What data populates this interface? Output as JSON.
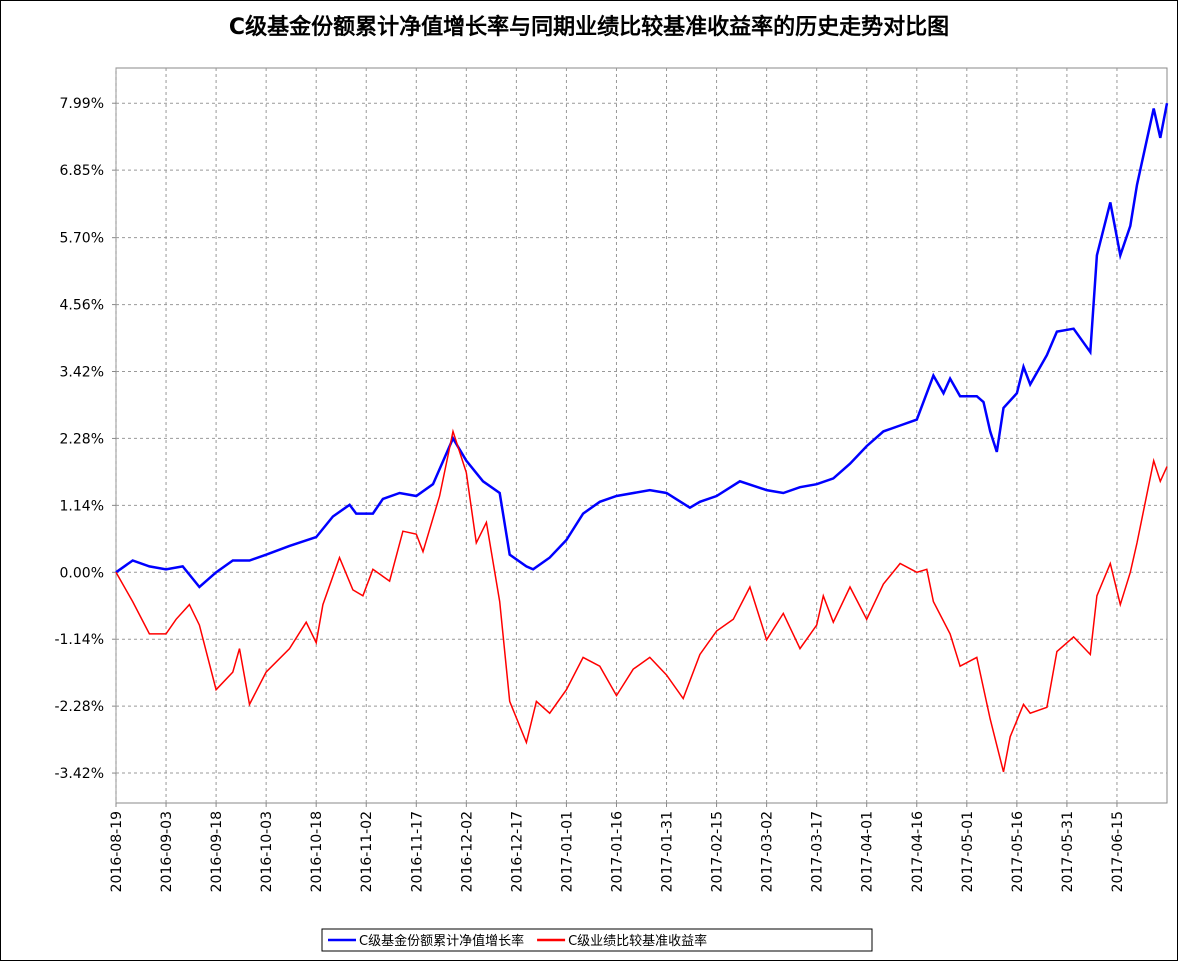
{
  "chart_data": {
    "type": "line",
    "title": "C级基金份额累计净值增长率与同期业绩比较基准收益率的历史走势对比图",
    "xlim": [
      "2016-08-19",
      "2017-06-30"
    ],
    "xticks": [
      "2016-08-19",
      "2016-09-03",
      "2016-09-18",
      "2016-10-03",
      "2016-10-18",
      "2016-11-02",
      "2016-11-17",
      "2016-12-02",
      "2016-12-17",
      "2017-01-01",
      "2017-01-16",
      "2017-01-31",
      "2017-02-15",
      "2017-03-02",
      "2017-03-17",
      "2017-04-01",
      "2017-04-16",
      "2017-05-01",
      "2017-05-16",
      "2017-05-31",
      "2017-06-15"
    ],
    "ylim": [
      -3.93,
      8.59
    ],
    "yticks": [
      {
        "value": 7.99,
        "label": "7.99%"
      },
      {
        "value": 6.85,
        "label": "6.85%"
      },
      {
        "value": 5.7,
        "label": "5.70%"
      },
      {
        "value": 4.56,
        "label": "4.56%"
      },
      {
        "value": 3.42,
        "label": "3.42%"
      },
      {
        "value": 2.28,
        "label": "2.28%"
      },
      {
        "value": 1.14,
        "label": "1.14%"
      },
      {
        "value": 0,
        "label": "0.00%"
      },
      {
        "value": -1.14,
        "label": "-1.14%"
      },
      {
        "value": -2.28,
        "label": "-2.28%"
      },
      {
        "value": -3.42,
        "label": "-3.42%"
      }
    ],
    "grid": true,
    "legend": "bottom",
    "series": [
      {
        "name": "C级基金份额累计净值增长率",
        "color": "#0000ff",
        "x": [
          "2016-08-19",
          "2016-08-24",
          "2016-08-29",
          "2016-09-03",
          "2016-09-08",
          "2016-09-13",
          "2016-09-18",
          "2016-09-23",
          "2016-09-28",
          "2016-10-03",
          "2016-10-10",
          "2016-10-18",
          "2016-10-23",
          "2016-10-28",
          "2016-10-30",
          "2016-11-04",
          "2016-11-07",
          "2016-11-12",
          "2016-11-17",
          "2016-11-22",
          "2016-11-28",
          "2016-12-02",
          "2016-12-07",
          "2016-12-12",
          "2016-12-15",
          "2016-12-20",
          "2016-12-22",
          "2016-12-27",
          "2017-01-01",
          "2017-01-06",
          "2017-01-11",
          "2017-01-16",
          "2017-01-26",
          "2017-01-31",
          "2017-02-07",
          "2017-02-10",
          "2017-02-15",
          "2017-02-22",
          "2017-03-02",
          "2017-03-07",
          "2017-03-12",
          "2017-03-17",
          "2017-03-22",
          "2017-03-27",
          "2017-04-01",
          "2017-04-06",
          "2017-04-11",
          "2017-04-16",
          "2017-04-21",
          "2017-04-24",
          "2017-04-26",
          "2017-04-29",
          "2017-05-04",
          "2017-05-06",
          "2017-05-08",
          "2017-05-10",
          "2017-05-12",
          "2017-05-16",
          "2017-05-18",
          "2017-05-20",
          "2017-05-25",
          "2017-05-28",
          "2017-06-02",
          "2017-06-07",
          "2017-06-09",
          "2017-06-13",
          "2017-06-16",
          "2017-06-19",
          "2017-06-21",
          "2017-06-26",
          "2017-06-28",
          "2017-06-30"
        ],
        "values": [
          0.0,
          0.2,
          0.1,
          0.05,
          0.1,
          -0.25,
          0.0,
          0.2,
          0.2,
          0.3,
          0.45,
          0.6,
          0.95,
          1.15,
          1.0,
          1.0,
          1.25,
          1.35,
          1.3,
          1.5,
          2.28,
          1.9,
          1.55,
          1.35,
          0.3,
          0.1,
          0.05,
          0.25,
          0.55,
          1.0,
          1.2,
          1.3,
          1.4,
          1.35,
          1.1,
          1.2,
          1.3,
          1.55,
          1.4,
          1.35,
          1.45,
          1.5,
          1.6,
          1.85,
          2.15,
          2.4,
          2.5,
          2.6,
          3.35,
          3.05,
          3.3,
          3.0,
          3.0,
          2.9,
          2.4,
          2.05,
          2.8,
          3.05,
          3.5,
          3.2,
          3.7,
          4.1,
          4.15,
          3.75,
          5.4,
          6.3,
          5.4,
          5.9,
          6.6,
          7.9,
          7.4,
          7.99
        ]
      },
      {
        "name": "C级业绩比较基准收益率",
        "color": "#ff0000",
        "x": [
          "2016-08-19",
          "2016-08-24",
          "2016-08-29",
          "2016-09-03",
          "2016-09-06",
          "2016-09-10",
          "2016-09-13",
          "2016-09-18",
          "2016-09-23",
          "2016-09-25",
          "2016-09-28",
          "2016-10-03",
          "2016-10-10",
          "2016-10-15",
          "2016-10-18",
          "2016-10-20",
          "2016-10-25",
          "2016-10-29",
          "2016-11-01",
          "2016-11-04",
          "2016-11-09",
          "2016-11-13",
          "2016-11-17",
          "2016-11-19",
          "2016-11-24",
          "2016-11-28",
          "2016-12-02",
          "2016-12-05",
          "2016-12-08",
          "2016-12-12",
          "2016-12-15",
          "2016-12-20",
          "2016-12-23",
          "2016-12-27",
          "2017-01-01",
          "2017-01-06",
          "2017-01-11",
          "2017-01-16",
          "2017-01-21",
          "2017-01-26",
          "2017-01-31",
          "2017-02-05",
          "2017-02-10",
          "2017-02-15",
          "2017-02-20",
          "2017-02-25",
          "2017-03-02",
          "2017-03-07",
          "2017-03-12",
          "2017-03-17",
          "2017-03-19",
          "2017-03-22",
          "2017-03-27",
          "2017-04-01",
          "2017-04-06",
          "2017-04-11",
          "2017-04-16",
          "2017-04-19",
          "2017-04-21",
          "2017-04-26",
          "2017-04-29",
          "2017-05-04",
          "2017-05-08",
          "2017-05-12",
          "2017-05-14",
          "2017-05-18",
          "2017-05-20",
          "2017-05-25",
          "2017-05-28",
          "2017-06-02",
          "2017-06-07",
          "2017-06-09",
          "2017-06-13",
          "2017-06-16",
          "2017-06-19",
          "2017-06-21",
          "2017-06-26",
          "2017-06-28",
          "2017-06-30"
        ],
        "values": [
          0.0,
          -0.5,
          -1.05,
          -1.05,
          -0.8,
          -0.55,
          -0.9,
          -2.0,
          -1.7,
          -1.3,
          -2.25,
          -1.7,
          -1.3,
          -0.85,
          -1.2,
          -0.55,
          0.25,
          -0.3,
          -0.4,
          0.05,
          -0.15,
          0.7,
          0.65,
          0.35,
          1.3,
          2.4,
          1.7,
          0.5,
          0.85,
          -0.5,
          -2.2,
          -2.9,
          -2.2,
          -2.4,
          -2.0,
          -1.45,
          -1.6,
          -2.1,
          -1.65,
          -1.45,
          -1.75,
          -2.15,
          -1.4,
          -1.0,
          -0.8,
          -0.25,
          -1.15,
          -0.7,
          -1.3,
          -0.9,
          -0.4,
          -0.85,
          -0.25,
          -0.8,
          -0.2,
          0.15,
          0.0,
          0.05,
          -0.5,
          -1.05,
          -1.6,
          -1.45,
          -2.5,
          -3.4,
          -2.8,
          -2.25,
          -2.4,
          -2.3,
          -1.35,
          -1.1,
          -1.4,
          -0.4,
          0.15,
          -0.55,
          0.0,
          0.5,
          1.9,
          1.55,
          1.8
        ]
      }
    ]
  }
}
